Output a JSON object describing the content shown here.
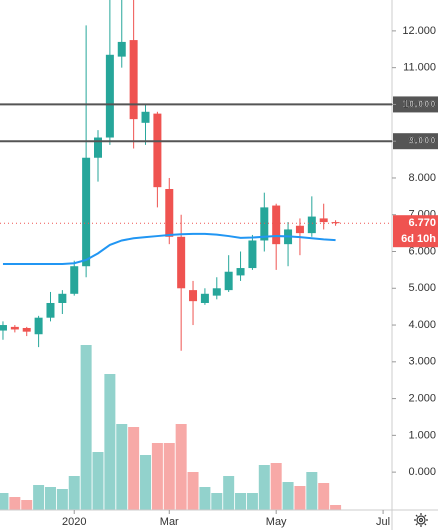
{
  "chart_data": {
    "type": "candlestick",
    "up_color": "#26a69a",
    "down_color": "#ef5350",
    "ma_color": "#2196f3",
    "hline_color": "#555555",
    "x": [
      0,
      1,
      2,
      3,
      4,
      5,
      6,
      7,
      8,
      9,
      10,
      11,
      12,
      13,
      14,
      15,
      16,
      17,
      18,
      19,
      20,
      21,
      22,
      23,
      24,
      25,
      26,
      27,
      28
    ],
    "xlim": [
      -0.25,
      32.75
    ],
    "xticks": [
      {
        "value": 6,
        "label": "2020"
      },
      {
        "value": 14,
        "label": "Mar"
      },
      {
        "value": 23,
        "label": "May"
      },
      {
        "value": 32,
        "label": "Jul"
      }
    ],
    "open": [
      3.85,
      3.95,
      3.92,
      3.75,
      4.2,
      4.6,
      4.85,
      5.6,
      8.55,
      9.1,
      11.3,
      11.75,
      9.5,
      9.75,
      7.7,
      6.4,
      4.95,
      4.6,
      4.8,
      4.95,
      5.35,
      5.55,
      6.3,
      7.25,
      6.2,
      6.7,
      6.5,
      6.9,
      6.8
    ],
    "high": [
      4.1,
      4.0,
      3.95,
      4.25,
      4.9,
      4.95,
      5.75,
      12.15,
      9.3,
      13.5,
      13.5,
      13.5,
      10.0,
      9.8,
      8.0,
      7.0,
      5.2,
      5.0,
      5.3,
      5.9,
      6.0,
      6.45,
      7.6,
      7.3,
      6.8,
      6.9,
      7.5,
      7.3,
      6.85
    ],
    "low": [
      3.6,
      3.8,
      3.7,
      3.4,
      4.1,
      4.3,
      4.8,
      5.3,
      7.9,
      8.9,
      11.0,
      8.8,
      8.9,
      7.2,
      6.2,
      3.3,
      4.0,
      4.55,
      4.7,
      4.9,
      5.2,
      5.5,
      6.0,
      5.5,
      5.6,
      5.9,
      6.4,
      6.6,
      6.7
    ],
    "close": [
      4.0,
      3.88,
      3.82,
      4.2,
      4.6,
      4.85,
      5.6,
      8.55,
      9.1,
      11.35,
      11.7,
      9.6,
      9.8,
      7.75,
      6.4,
      5.0,
      4.65,
      4.85,
      5.0,
      5.45,
      5.55,
      6.3,
      7.2,
      6.2,
      6.6,
      6.5,
      6.95,
      6.8,
      6.77
    ],
    "ma": [
      5.66,
      5.66,
      5.66,
      5.66,
      5.66,
      5.66,
      5.68,
      5.77,
      5.95,
      6.18,
      6.3,
      6.36,
      6.39,
      6.42,
      6.45,
      6.47,
      6.48,
      6.48,
      6.46,
      6.42,
      6.37,
      6.38,
      6.4,
      6.42,
      6.41,
      6.39,
      6.36,
      6.33,
      6.31
    ],
    "volume": [
      17,
      13,
      10,
      25,
      23,
      21,
      34,
      165,
      58,
      136,
      86,
      83,
      55,
      67,
      67,
      86,
      38,
      23,
      17,
      34,
      17,
      17,
      45,
      47,
      28,
      24,
      38,
      27,
      5
    ],
    "volume_lim": [
      0,
      510
    ],
    "ylim": [
      -1.03,
      12.84
    ],
    "yticks": [
      {
        "value": 0,
        "label": "0.000"
      },
      {
        "value": 1,
        "label": "1.000"
      },
      {
        "value": 2,
        "label": "2.000"
      },
      {
        "value": 3,
        "label": "3.000"
      },
      {
        "value": 4,
        "label": "4.000"
      },
      {
        "value": 5,
        "label": "5.000"
      },
      {
        "value": 6,
        "label": "6.000"
      },
      {
        "value": 7,
        "label": "7.000"
      },
      {
        "value": 8,
        "label": "8.000"
      },
      {
        "value": 9,
        "label": "9.000"
      },
      {
        "value": 10,
        "label": "10.000"
      },
      {
        "value": 11,
        "label": "11.000"
      },
      {
        "value": 12,
        "label": "12.000"
      }
    ],
    "hlines": [
      {
        "value": 10,
        "label": "10.000"
      },
      {
        "value": 9,
        "label": "9.000"
      }
    ],
    "last_price": {
      "value": 6.77,
      "label": "6.770"
    },
    "countdown": "6d 10h"
  }
}
